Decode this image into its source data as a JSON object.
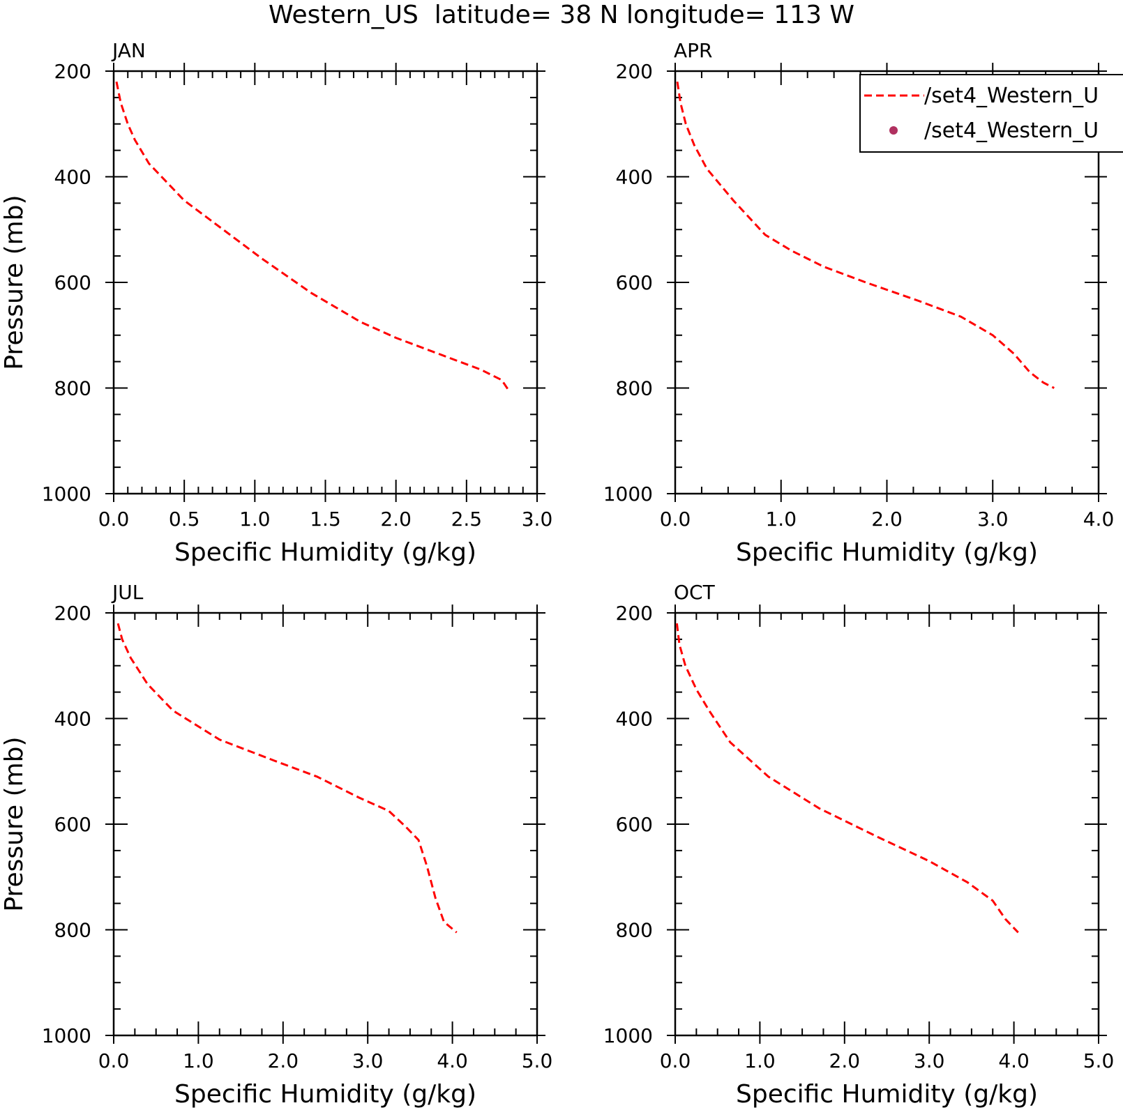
{
  "figure": {
    "title": "Western_US  latitude= 38 N longitude= 113 W"
  },
  "colors": {
    "series_line": "#ff0000",
    "series_marker": "#b03060",
    "axis": "#000000",
    "background": "#ffffff"
  },
  "legend": {
    "placement": "top-right (APR panel)",
    "entries": [
      {
        "label": "/set4_Western_U",
        "style": "dashed-line"
      },
      {
        "label": "/set4_Western_U",
        "style": "dot"
      }
    ]
  },
  "chart_data": [
    {
      "type": "line",
      "panel_label": "JAN",
      "xlabel": "Specific Humidity (g/kg)",
      "ylabel": "Pressure (mb)",
      "xlim": [
        0,
        3
      ],
      "ylim": [
        1000,
        200
      ],
      "y_inverted": true,
      "xticks": [
        "0.0",
        "0.5",
        "1.0",
        "1.5",
        "2.0",
        "2.5",
        "3.0"
      ],
      "yticks": [
        "200",
        "400",
        "600",
        "800",
        "1000"
      ],
      "series": [
        {
          "style": "dashed",
          "x": [
            0.02,
            0.05,
            0.1,
            0.15,
            0.25,
            0.5,
            0.8,
            1.05,
            1.4,
            1.75,
            2.0,
            2.35,
            2.6,
            2.75,
            2.8
          ],
          "y": [
            220,
            260,
            300,
            330,
            375,
            445,
            505,
            555,
            620,
            675,
            705,
            740,
            765,
            785,
            805
          ]
        }
      ]
    },
    {
      "type": "line",
      "panel_label": "APR",
      "xlabel": "Specific Humidity (g/kg)",
      "ylabel": "",
      "xlim": [
        0,
        4
      ],
      "ylim": [
        1000,
        200
      ],
      "y_inverted": true,
      "xticks": [
        "0.0",
        "1.0",
        "2.0",
        "3.0",
        "4.0"
      ],
      "yticks": [
        "200",
        "400",
        "600",
        "800",
        "1000"
      ],
      "series": [
        {
          "style": "dashed",
          "x": [
            0.02,
            0.05,
            0.1,
            0.18,
            0.3,
            0.55,
            0.85,
            1.1,
            1.4,
            1.8,
            2.3,
            2.7,
            3.0,
            3.2,
            3.35,
            3.48,
            3.58
          ],
          "y": [
            220,
            260,
            300,
            340,
            385,
            445,
            510,
            540,
            570,
            600,
            635,
            665,
            700,
            735,
            770,
            790,
            800
          ]
        }
      ]
    },
    {
      "type": "line",
      "panel_label": "JUL",
      "xlabel": "Specific Humidity (g/kg)",
      "ylabel": "Pressure (mb)",
      "xlim": [
        0,
        5
      ],
      "ylim": [
        1000,
        200
      ],
      "y_inverted": true,
      "xticks": [
        "0.0",
        "1.0",
        "2.0",
        "3.0",
        "4.0",
        "5.0"
      ],
      "yticks": [
        "200",
        "400",
        "600",
        "800",
        "1000"
      ],
      "series": [
        {
          "style": "dashed",
          "x": [
            0.05,
            0.1,
            0.2,
            0.4,
            0.7,
            1.25,
            1.9,
            2.4,
            2.9,
            3.25,
            3.45,
            3.6,
            3.7,
            3.8,
            3.9,
            4.05
          ],
          "y": [
            220,
            250,
            285,
            335,
            385,
            440,
            480,
            510,
            550,
            575,
            605,
            630,
            680,
            740,
            785,
            805
          ]
        }
      ]
    },
    {
      "type": "line",
      "panel_label": "OCT",
      "xlabel": "Specific Humidity (g/kg)",
      "ylabel": "",
      "xlim": [
        0,
        5
      ],
      "ylim": [
        1000,
        200
      ],
      "y_inverted": true,
      "xticks": [
        "0.0",
        "1.0",
        "2.0",
        "3.0",
        "4.0",
        "5.0"
      ],
      "yticks": [
        "200",
        "400",
        "600",
        "800",
        "1000"
      ],
      "series": [
        {
          "style": "dashed",
          "x": [
            0.02,
            0.05,
            0.12,
            0.25,
            0.4,
            0.65,
            1.1,
            1.7,
            2.4,
            3.0,
            3.45,
            3.75,
            3.9,
            4.05
          ],
          "y": [
            220,
            260,
            300,
            345,
            385,
            445,
            510,
            570,
            625,
            670,
            710,
            745,
            780,
            805
          ]
        }
      ]
    }
  ]
}
